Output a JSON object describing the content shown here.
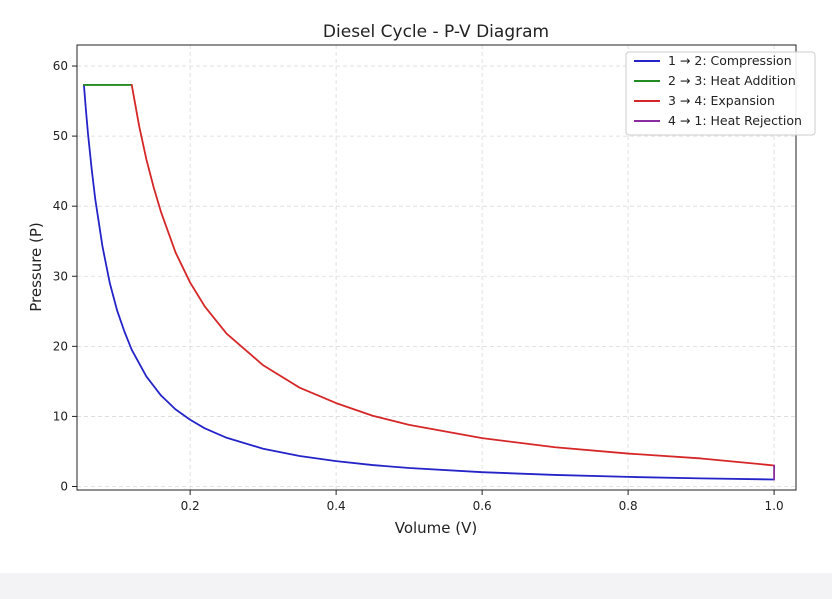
{
  "chart_data": {
    "type": "line",
    "title": "Diesel Cycle - P-V Diagram",
    "xlabel": "Volume (V)",
    "ylabel": "Pressure (P)",
    "xlim": [
      0.045,
      1.03
    ],
    "ylim": [
      -0.5,
      63
    ],
    "xticks": [
      0.2,
      0.4,
      0.6,
      0.8,
      1.0
    ],
    "xtick_labels": [
      "0.2",
      "0.4",
      "0.6",
      "0.8",
      "1.0"
    ],
    "yticks": [
      0,
      10,
      20,
      30,
      40,
      50,
      60
    ],
    "ytick_labels": [
      "0",
      "10",
      "20",
      "30",
      "40",
      "50",
      "60"
    ],
    "grid": true,
    "legend_position": "top-right",
    "series": [
      {
        "name": "1 → 2: Compression",
        "color": "#2424c8",
        "x": [
          1.0,
          0.9,
          0.8,
          0.7,
          0.6,
          0.5,
          0.45,
          0.4,
          0.35,
          0.3,
          0.25,
          0.22,
          0.2,
          0.18,
          0.16,
          0.14,
          0.12,
          0.11,
          0.1,
          0.09,
          0.08,
          0.07,
          0.065,
          0.06,
          0.057,
          0.0545
        ],
        "y": [
          1.0,
          1.16,
          1.37,
          1.65,
          2.04,
          2.64,
          3.06,
          3.62,
          4.35,
          5.39,
          6.95,
          8.3,
          9.52,
          11.0,
          13.0,
          15.7,
          19.5,
          22.1,
          25.1,
          29.0,
          34.2,
          41.0,
          45.4,
          50.4,
          54.0,
          57.3
        ]
      },
      {
        "name": "2 → 3: Heat Addition",
        "color": "#228b22",
        "x": [
          0.0545,
          0.12
        ],
        "y": [
          57.3,
          57.3
        ]
      },
      {
        "name": "3 → 4: Expansion",
        "color": "#d62728",
        "x": [
          0.12,
          0.13,
          0.14,
          0.15,
          0.16,
          0.18,
          0.2,
          0.22,
          0.25,
          0.3,
          0.35,
          0.4,
          0.45,
          0.5,
          0.6,
          0.7,
          0.8,
          0.9,
          1.0
        ],
        "y": [
          57.3,
          51.5,
          46.7,
          42.7,
          39.2,
          33.4,
          29.1,
          25.7,
          21.8,
          17.3,
          14.1,
          11.9,
          10.1,
          8.8,
          6.9,
          5.6,
          4.7,
          4.0,
          3.0
        ]
      },
      {
        "name": "4 → 1: Heat Rejection",
        "color": "#8b2ba0",
        "x": [
          1.0,
          1.0
        ],
        "y": [
          3.0,
          1.0
        ]
      }
    ]
  }
}
